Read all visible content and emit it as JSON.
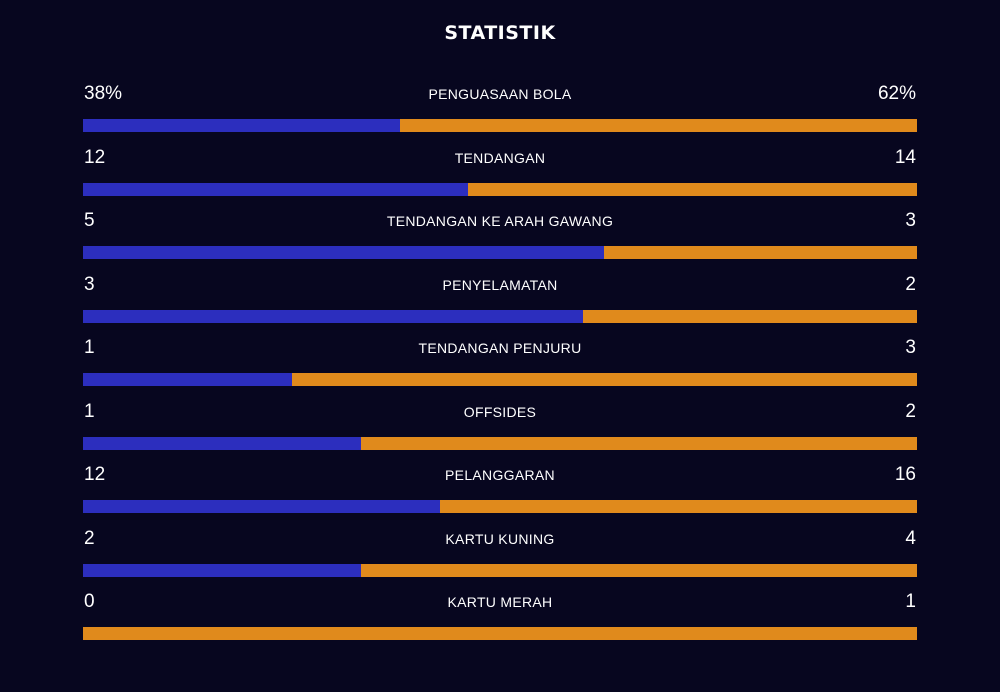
{
  "title": "STATISTIK",
  "colors": {
    "background": "#07061f",
    "home": "#2c2ebe",
    "away": "#e08a1c"
  },
  "stats": [
    {
      "label": "PENGUASAAN BOLA",
      "home": "38%",
      "away": "62%",
      "home_value": 38,
      "away_value": 62
    },
    {
      "label": "TENDANGAN",
      "home": "12",
      "away": "14",
      "home_value": 12,
      "away_value": 14
    },
    {
      "label": "TENDANGAN KE ARAH GAWANG",
      "home": "5",
      "away": "3",
      "home_value": 5,
      "away_value": 3
    },
    {
      "label": "PENYELAMATAN",
      "home": "3",
      "away": "2",
      "home_value": 3,
      "away_value": 2
    },
    {
      "label": "TENDANGAN PENJURU",
      "home": "1",
      "away": "3",
      "home_value": 1,
      "away_value": 3
    },
    {
      "label": "OFFSIDES",
      "home": "1",
      "away": "2",
      "home_value": 1,
      "away_value": 2
    },
    {
      "label": "PELANGGARAN",
      "home": "12",
      "away": "16",
      "home_value": 12,
      "away_value": 16
    },
    {
      "label": "KARTU KUNING",
      "home": "2",
      "away": "4",
      "home_value": 2,
      "away_value": 4
    },
    {
      "label": "KARTU MERAH",
      "home": "0",
      "away": "1",
      "home_value": 0,
      "away_value": 1
    }
  ]
}
